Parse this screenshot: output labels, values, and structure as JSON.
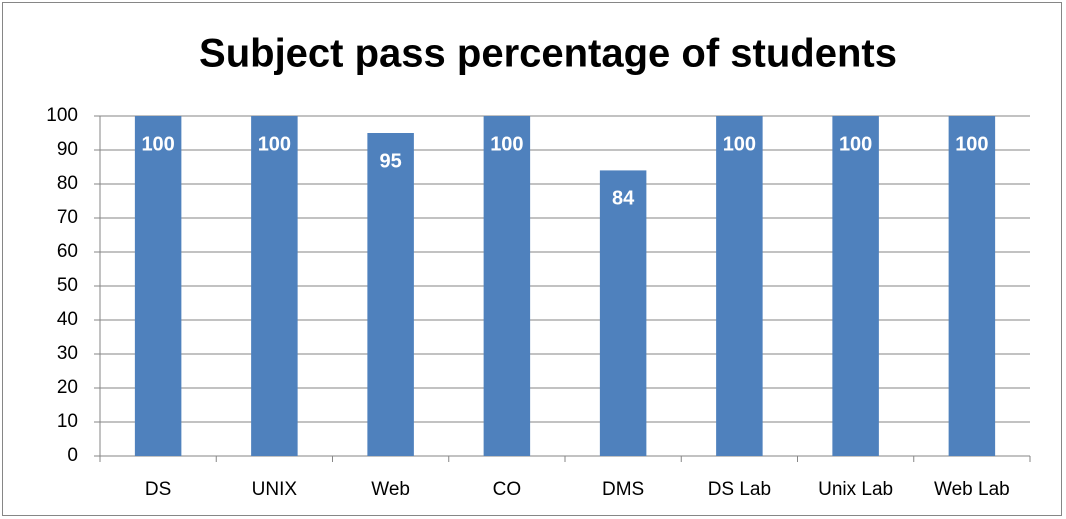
{
  "chart_data": {
    "type": "bar",
    "title": "Subject pass percentage of students",
    "categories": [
      "DS",
      "UNIX",
      "Web",
      "CO",
      "DMS",
      "DS Lab",
      "Unix Lab",
      "Web Lab"
    ],
    "values": [
      100,
      100,
      95,
      100,
      84,
      100,
      100,
      100
    ],
    "color": "#4f81bd",
    "ylim": [
      0,
      100
    ],
    "yticks": [
      0,
      10,
      20,
      30,
      40,
      50,
      60,
      70,
      80,
      90,
      100
    ],
    "grid": true,
    "data_labels": true
  }
}
